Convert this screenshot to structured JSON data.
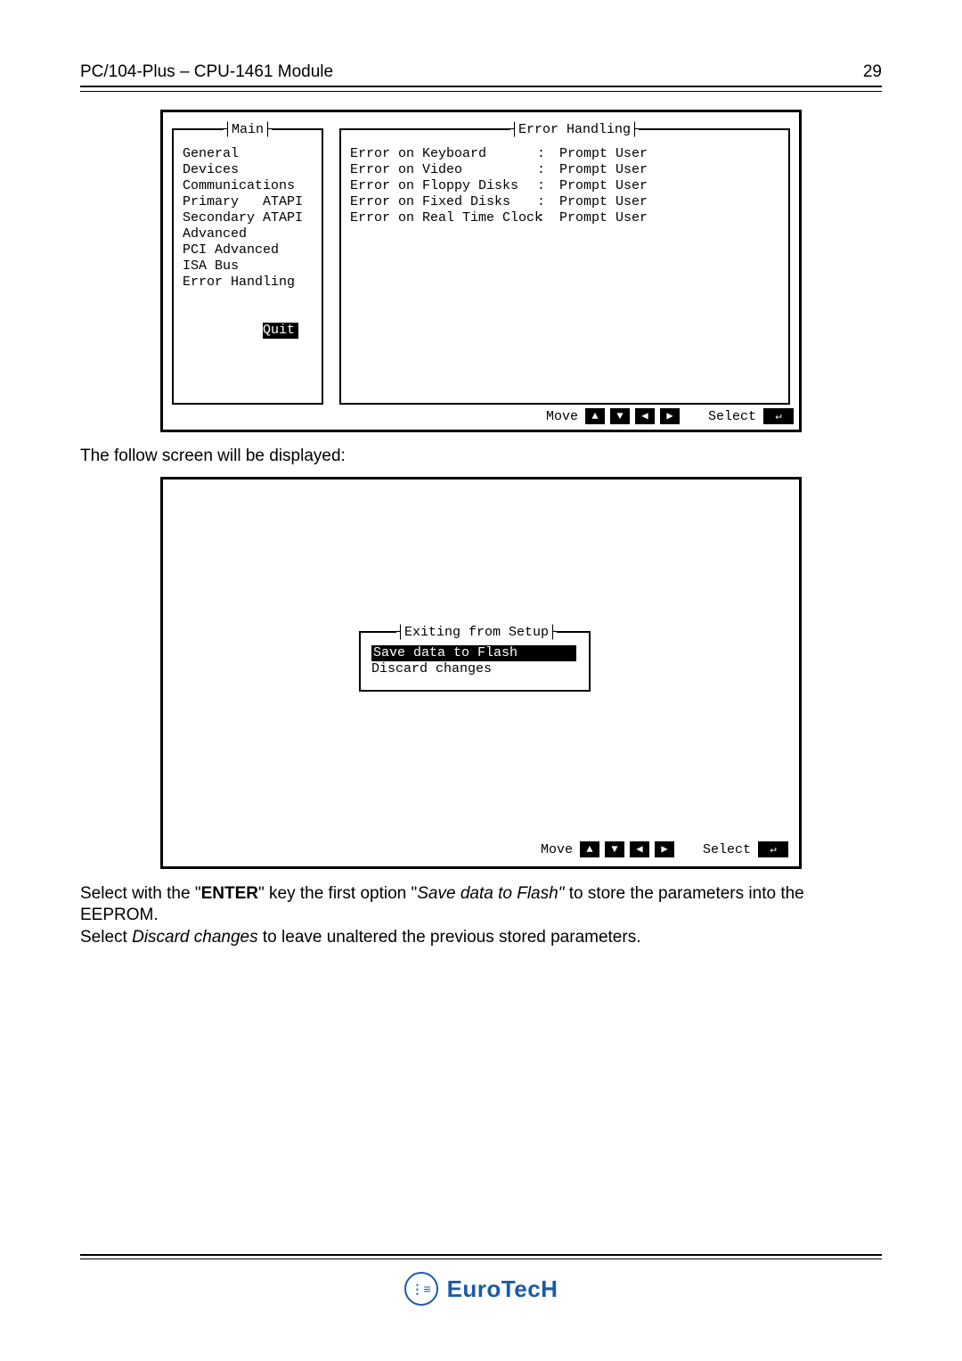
{
  "header": {
    "title": "PC/104-Plus – CPU-1461 Module",
    "page_number": "29"
  },
  "bios1": {
    "main_title": "Main",
    "menu_items": [
      "General",
      "Devices",
      "Communications",
      "Primary   ATAPI",
      "Secondary ATAPI",
      "Advanced",
      "PCI Advanced",
      "ISA Bus",
      "Error Handling"
    ],
    "selected_item": "Quit",
    "err_title": "Error Handling",
    "err_rows": [
      {
        "label": "Error on Keyboard",
        "value": "Prompt User"
      },
      {
        "label": "Error on Video",
        "value": "Prompt User"
      },
      {
        "label": "Error on Floppy Disks",
        "value": "Prompt User"
      },
      {
        "label": "Error on Fixed Disks",
        "value": "Prompt User"
      },
      {
        "label": "Error on Real Time Clock",
        "value": "Prompt User"
      }
    ],
    "footer": {
      "move": "Move",
      "select": "Select"
    }
  },
  "para1": "The follow screen will be displayed:",
  "bios2": {
    "exit_title": "Exiting from Setup",
    "selected_option": "Save data to Flash",
    "other_option": "Discard changes",
    "footer": {
      "move": "Move",
      "select": "Select"
    }
  },
  "body": {
    "line1a": "Select with the \"",
    "enter": "ENTER",
    "line1b": "\" key the first option \"",
    "save_italic": "Save data to Flash\" ",
    "line1c": "to store the parameters into the EEPROM.",
    "line2a": "Select ",
    "discard_italic": "Discard changes",
    "line2b": " to leave unaltered the previous stored parameters."
  },
  "footer_logo": {
    "brand": "EuroTecH",
    "color": "#1a5aa8"
  }
}
